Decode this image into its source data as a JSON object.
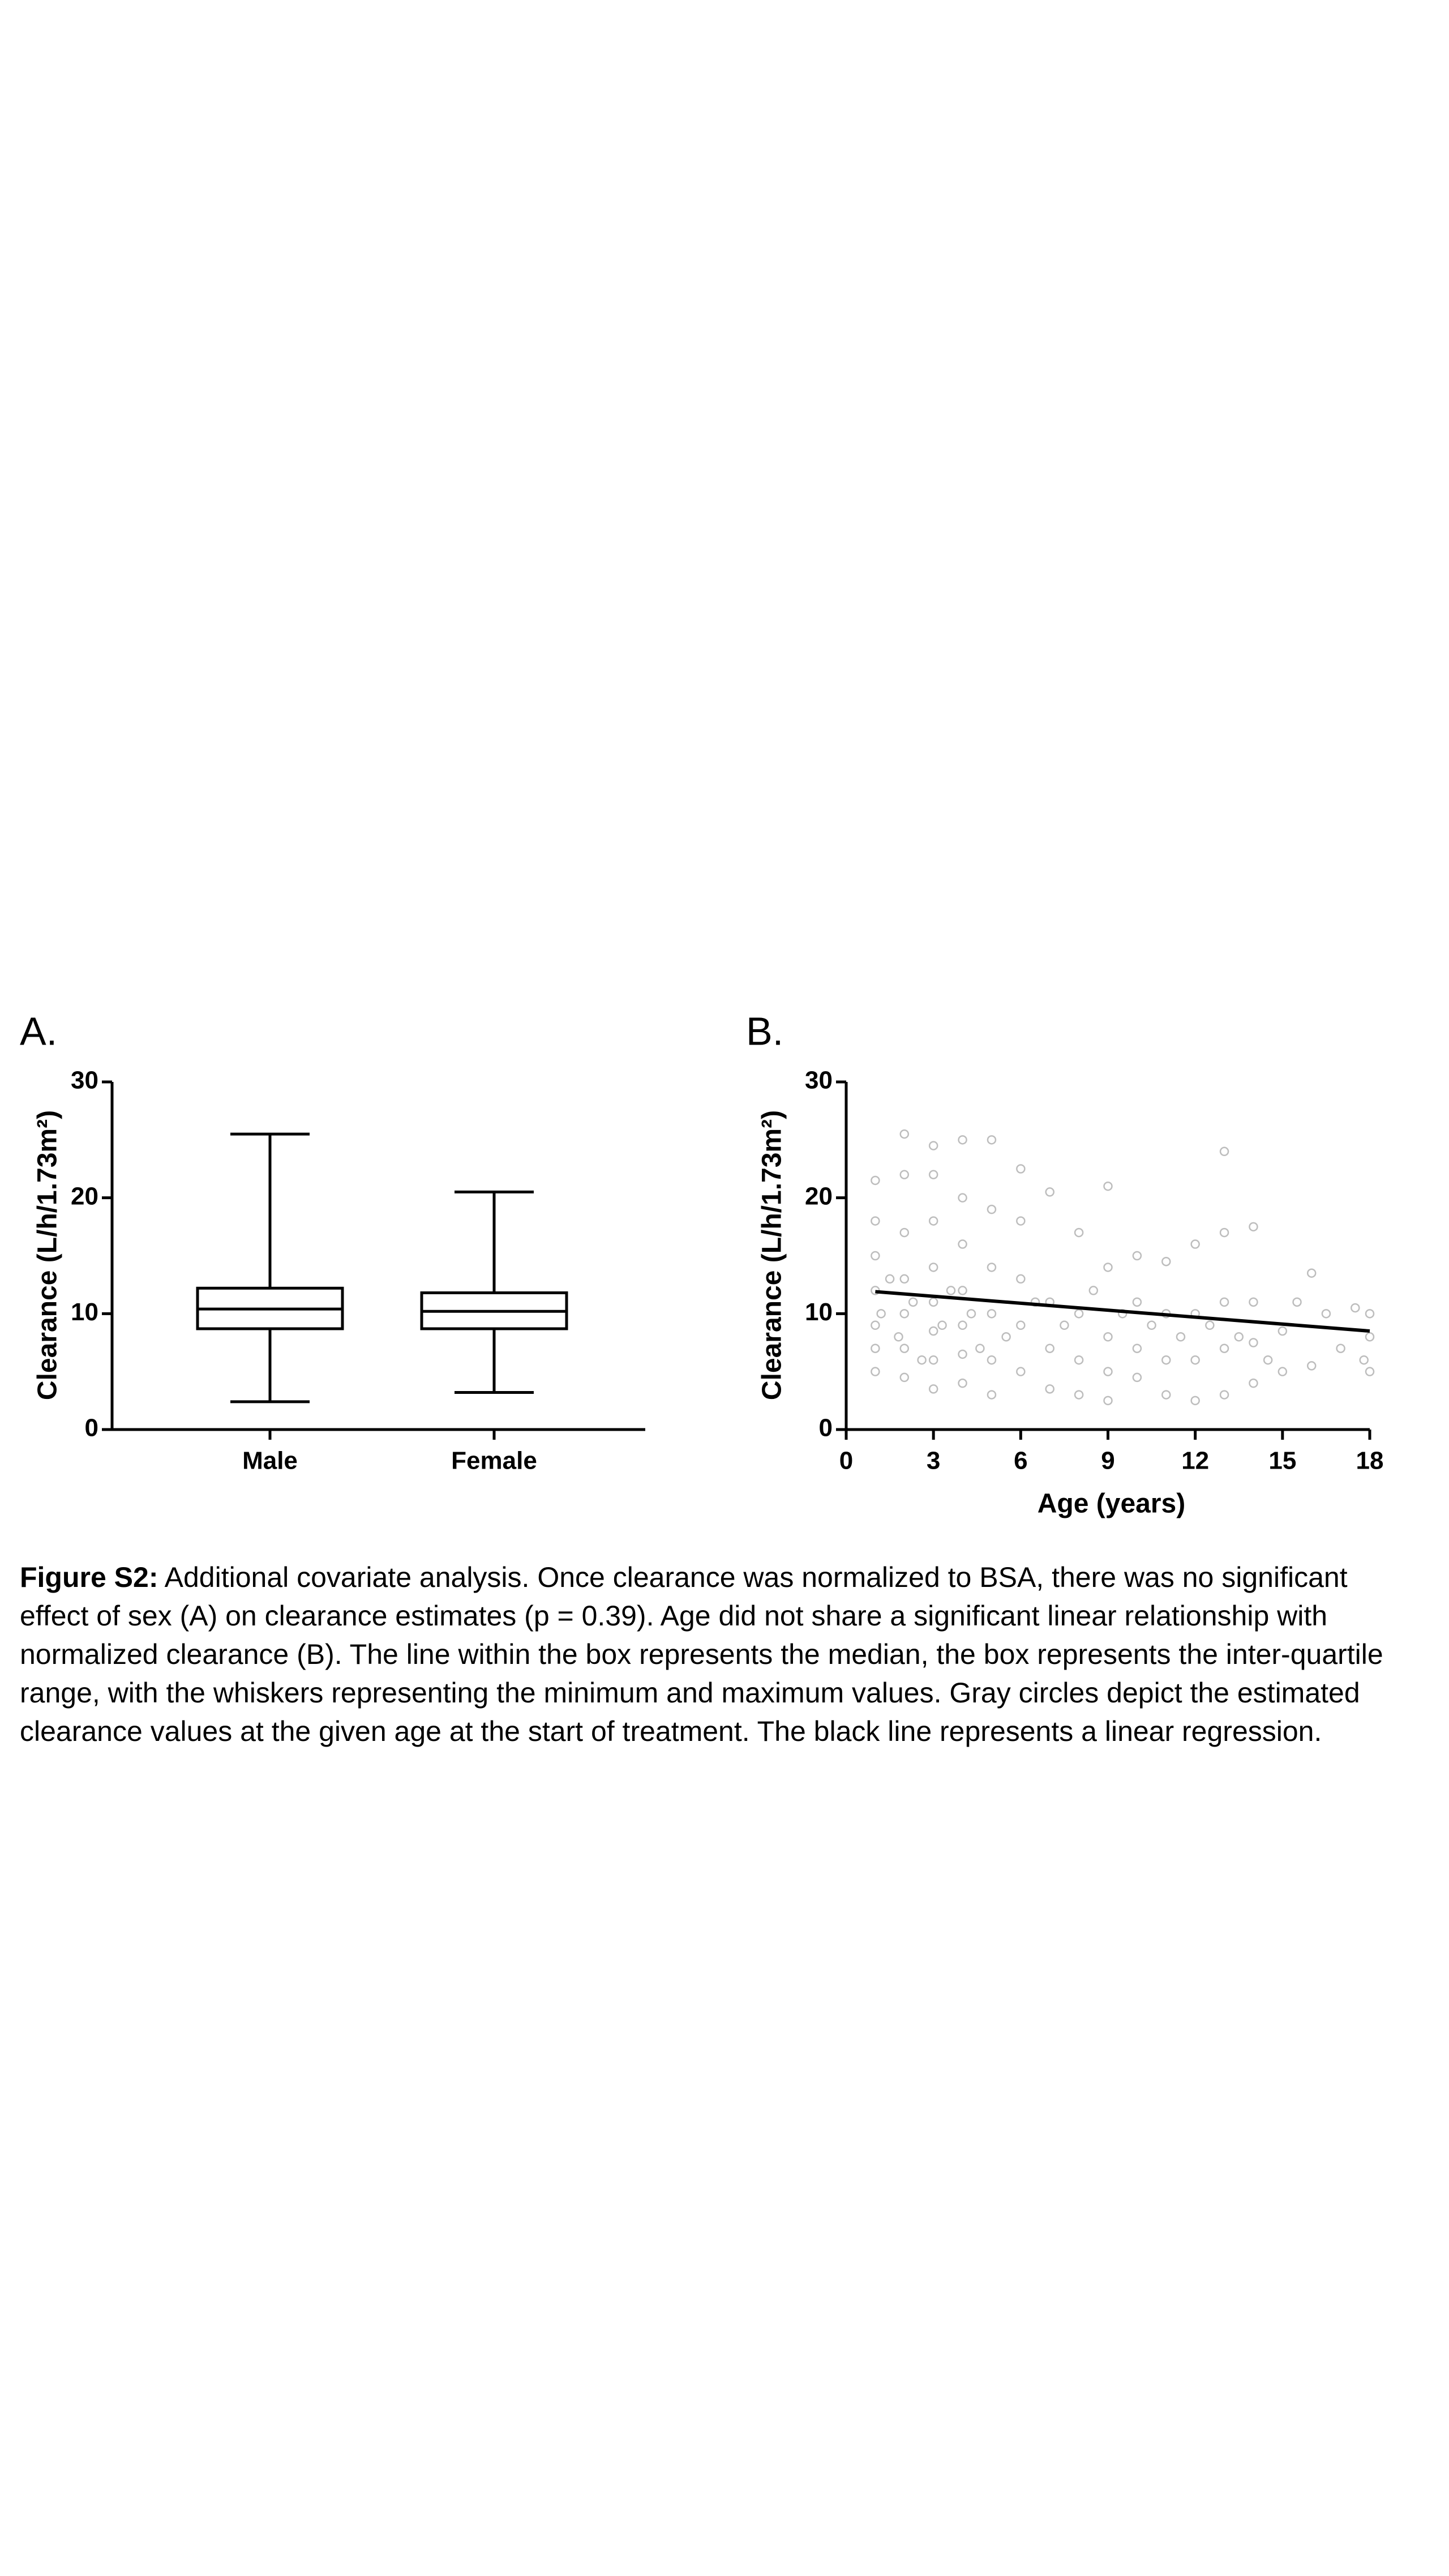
{
  "chart_data": [
    {
      "type": "box",
      "panel": "A.",
      "ylabel": "Clearance (L/h/1.73m²)",
      "categories": [
        "Male",
        "Female"
      ],
      "boxes": [
        {
          "min": 2.4,
          "q1": 8.7,
          "median": 10.4,
          "q3": 12.2,
          "max": 25.5
        },
        {
          "min": 3.2,
          "q1": 8.7,
          "median": 10.2,
          "q3": 11.8,
          "max": 20.5
        }
      ],
      "color": "#000000",
      "ylim": [
        0,
        30
      ],
      "yticks": [
        0,
        10,
        20,
        30
      ]
    },
    {
      "type": "scatter",
      "panel": "B.",
      "ylabel": "Clearance (L/h/1.73m²)",
      "xlabel": "Age (years)",
      "x": [
        1,
        1,
        1,
        1,
        1,
        1,
        1,
        1.2,
        1.5,
        1.8,
        2,
        2,
        2,
        2,
        2,
        2,
        2,
        2.3,
        2.6,
        3,
        3,
        3,
        3,
        3,
        3,
        3,
        3,
        3.3,
        3.6,
        4,
        4,
        4,
        4,
        4,
        4,
        4,
        4.3,
        4.6,
        5,
        5,
        5,
        5,
        5,
        5,
        5.5,
        6,
        6,
        6,
        6,
        6,
        6.5,
        7,
        7,
        7,
        7,
        7.5,
        8,
        8,
        8,
        8,
        8.5,
        9,
        9,
        9,
        9,
        9,
        9.5,
        10,
        10,
        10,
        10,
        10.5,
        11,
        11,
        11,
        11,
        11.5,
        12,
        12,
        12,
        12,
        12.5,
        13,
        13,
        13,
        13,
        13,
        13.5,
        14,
        14,
        14,
        14,
        14.5,
        15,
        15,
        15.5,
        16,
        16,
        16.5,
        17,
        17.5,
        17.8,
        18,
        18,
        18
      ],
      "y": [
        5,
        7,
        9,
        12,
        15,
        18,
        21.5,
        10,
        13,
        8,
        4.5,
        7,
        10,
        13,
        17,
        22,
        25.5,
        11,
        6,
        3.5,
        6,
        8.5,
        11,
        14,
        18,
        22,
        24.5,
        9,
        12,
        4,
        6.5,
        9,
        12,
        16,
        20,
        25,
        10,
        7,
        3,
        6,
        10,
        14,
        19,
        25,
        8,
        5,
        9,
        13,
        18,
        22.5,
        11,
        3.5,
        7,
        11,
        20.5,
        9,
        3,
        6,
        10,
        17,
        12,
        2.5,
        5,
        8,
        14,
        21,
        10,
        4.5,
        7,
        11,
        15,
        9,
        3,
        6,
        10,
        14.5,
        8,
        2.5,
        6,
        10,
        16,
        9,
        3,
        7,
        11,
        17,
        24,
        8,
        4,
        7.5,
        11,
        17.5,
        6,
        5,
        8.5,
        11,
        5.5,
        13.5,
        10,
        7,
        10.5,
        6,
        5,
        8,
        10
      ],
      "color": "#bdbdbd",
      "regression": {
        "x": [
          1,
          18
        ],
        "y": [
          11.9,
          8.5
        ],
        "color": "#000000"
      },
      "xlim": [
        0,
        18
      ],
      "xticks": [
        0,
        3,
        6,
        9,
        12,
        15,
        18
      ],
      "ylim": [
        0,
        30
      ],
      "yticks": [
        0,
        10,
        20,
        30
      ]
    }
  ],
  "caption": {
    "label": "Figure S2:",
    "text": "Additional covariate analysis. Once clearance was normalized to BSA, there was no significant effect of sex (A) on clearance estimates (p = 0.39). Age did not share a significant linear relationship with normalized clearance (B). The line within the box represents the median, the box represents the inter-quartile range, with the whiskers representing the minimum and maximum values. Gray circles depict the estimated clearance values at the given age at the start of treatment. The black line represents a linear regression."
  }
}
